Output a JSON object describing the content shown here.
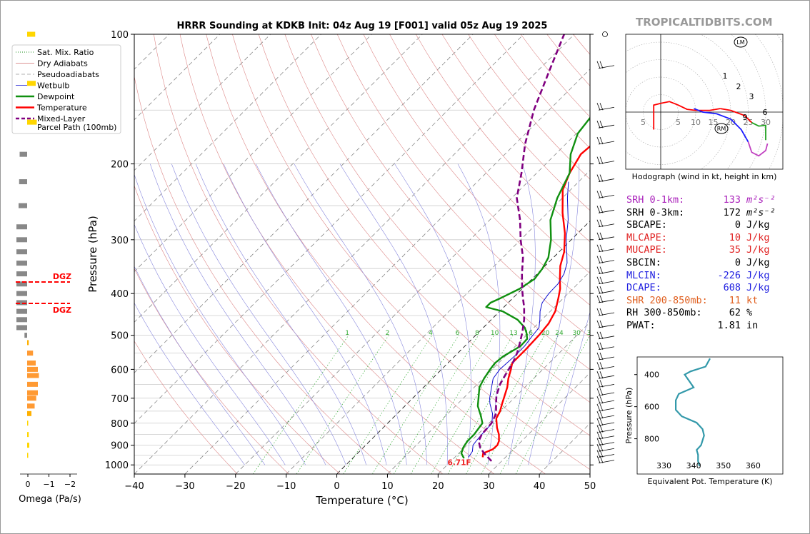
{
  "site": {
    "brand": "TROPICALTIDBITS.COM"
  },
  "chart_data": [
    {
      "type": "line",
      "chart_kind": "skew-T log-P sounding",
      "title": "HRRR Sounding at KDKB Init: 04z Aug 19 [F001] valid 05z Aug 19 2025",
      "xlabel": "Temperature (°C)",
      "ylabel": "Pressure (hPa)",
      "xlim": [
        -40,
        50
      ],
      "ylim": [
        1050,
        100
      ],
      "y_scale": "log",
      "x_ticks": [
        "−40",
        "−30",
        "−20",
        "−10",
        "0",
        "10",
        "20",
        "30",
        "40",
        "50"
      ],
      "y_ticks": [
        "100",
        "200",
        "300",
        "400",
        "500",
        "600",
        "700",
        "800",
        "900",
        "1000"
      ],
      "legend": {
        "position": "top-left",
        "entries": [
          {
            "label": "Sat. Mix. Ratio",
            "color": "#1a8f1a",
            "style": "dotted"
          },
          {
            "label": "Dry Adiabats",
            "color": "#d07070",
            "style": "solid"
          },
          {
            "label": "Pseudoadiabats",
            "color": "#999999",
            "style": "dashed"
          },
          {
            "label": "Wetbulb",
            "color": "#1010d0",
            "style": "solid"
          },
          {
            "label": "Dewpoint",
            "color": "#109010",
            "style": "solid"
          },
          {
            "label": "Temperature",
            "color": "#ff0000",
            "style": "solid"
          },
          {
            "label": "Mixed-Layer\nParcel Path (100mb)",
            "color": "#800080",
            "style": "dashed"
          }
        ]
      },
      "mixing_ratio_labels": [
        "1",
        "2",
        "4",
        "6",
        "8",
        "10",
        "13",
        "16",
        "20",
        "24",
        "30",
        "36"
      ],
      "surface_label": "6.71F",
      "series": [
        {
          "name": "Temperature",
          "color": "#ff0000",
          "points": [
            [
              25.5,
              960
            ],
            [
              24.8,
              940
            ],
            [
              25.9,
              920
            ],
            [
              26,
              900
            ],
            [
              25.5,
              880
            ],
            [
              24.2,
              850
            ],
            [
              22.5,
              820
            ],
            [
              20.5,
              780
            ],
            [
              19.8,
              750
            ],
            [
              18.7,
              720
            ],
            [
              18,
              700
            ],
            [
              16.5,
              660
            ],
            [
              15,
              630
            ],
            [
              13.7,
              600
            ],
            [
              12.7,
              580
            ],
            [
              12.7,
              560
            ],
            [
              12.7,
              540
            ],
            [
              12.5,
              500
            ],
            [
              12.1,
              470
            ],
            [
              11,
              440
            ],
            [
              9,
              410
            ],
            [
              7.5,
              390
            ],
            [
              5.5,
              370
            ],
            [
              3,
              345
            ],
            [
              1,
              320
            ],
            [
              -2.5,
              290
            ],
            [
              -7,
              260
            ],
            [
              -11.5,
              230
            ],
            [
              -13.5,
              210
            ],
            [
              -15,
              190
            ],
            [
              -14.3,
              170
            ],
            [
              -15,
              150
            ],
            [
              -13.2,
              130
            ],
            [
              -5,
              100
            ]
          ]
        },
        {
          "name": "Dewpoint",
          "color": "#109010",
          "points": [
            [
              22,
              965
            ],
            [
              20.5,
              940
            ],
            [
              19.7,
              910
            ],
            [
              19.3,
              880
            ],
            [
              19.3,
              850
            ],
            [
              18.7,
              800
            ],
            [
              17,
              770
            ],
            [
              14.4,
              730
            ],
            [
              13,
              700
            ],
            [
              11,
              660
            ],
            [
              10.2,
              630
            ],
            [
              9.6,
              600
            ],
            [
              9.3,
              580
            ],
            [
              9.6,
              560
            ],
            [
              11,
              530
            ],
            [
              10.9,
              510
            ],
            [
              9.7,
              495
            ],
            [
              8.2,
              480
            ],
            [
              5.2,
              460
            ],
            [
              0.6,
              440
            ],
            [
              -3.5,
              430
            ],
            [
              -3.5,
              420
            ],
            [
              -2.4,
              410
            ],
            [
              -0.5,
              390
            ],
            [
              0.5,
              370
            ],
            [
              0,
              350
            ],
            [
              -1,
              330
            ],
            [
              -4,
              300
            ],
            [
              -8,
              270
            ],
            [
              -11,
              240
            ],
            [
              -13.5,
              210
            ],
            [
              -17,
              190
            ],
            [
              -19.7,
              170
            ],
            [
              -20.7,
              150
            ],
            [
              -21,
              130
            ],
            [
              -16,
              100
            ]
          ]
        },
        {
          "name": "Wetbulb",
          "color": "#1010d0",
          "points": [
            [
              22.7,
              960
            ],
            [
              22.3,
              930
            ],
            [
              21.2,
              900
            ],
            [
              21,
              880
            ],
            [
              20.8,
              850
            ],
            [
              20.6,
              800
            ],
            [
              18.8,
              760
            ],
            [
              16.3,
              720
            ],
            [
              15.2,
              700
            ],
            [
              13.4,
              660
            ],
            [
              12,
              630
            ],
            [
              11.5,
              600
            ],
            [
              11.8,
              560
            ],
            [
              11.8,
              530
            ],
            [
              11.3,
              500
            ],
            [
              11,
              480
            ],
            [
              9.6,
              460
            ],
            [
              8,
              440
            ],
            [
              6.7,
              420
            ],
            [
              6.2,
              400
            ],
            [
              6.1,
              380
            ],
            [
              5.3,
              360
            ],
            [
              3.8,
              340
            ],
            [
              1.5,
              320
            ],
            [
              -1,
              300
            ],
            [
              -4.5,
              270
            ],
            [
              -9,
              240
            ],
            [
              -12,
              220
            ]
          ]
        },
        {
          "name": "Mixed-Layer Parcel Path (100mb)",
          "color": "#800080",
          "style": "dashed",
          "points": [
            [
              28,
              980
            ],
            [
              25,
              940
            ],
            [
              23,
              910
            ],
            [
              21.5,
              880
            ],
            [
              20.8,
              850
            ],
            [
              20.5,
              800
            ],
            [
              19.5,
              760
            ],
            [
              17.5,
              720
            ],
            [
              16,
              690
            ],
            [
              14.5,
              650
            ],
            [
              13.5,
              610
            ],
            [
              12.8,
              580
            ],
            [
              11.7,
              550
            ],
            [
              10.2,
              520
            ],
            [
              8.5,
              490
            ],
            [
              6.5,
              460
            ],
            [
              4,
              430
            ],
            [
              2,
              410
            ],
            [
              0,
              390
            ],
            [
              -3,
              360
            ],
            [
              -6,
              330
            ],
            [
              -10,
              300
            ],
            [
              -14,
              270
            ],
            [
              -19,
              240
            ],
            [
              -23,
              210
            ],
            [
              -28,
              180
            ],
            [
              -33,
              150
            ],
            [
              -38,
              120
            ],
            [
              -42,
              100
            ]
          ]
        }
      ],
      "wind_barbs_pressure": [
        990,
        960,
        930,
        900,
        870,
        840,
        810,
        780,
        750,
        720,
        690,
        660,
        630,
        600,
        570,
        540,
        510,
        480,
        450,
        420,
        400,
        380,
        360,
        340,
        320,
        300,
        280,
        260,
        240,
        220,
        200,
        180,
        165,
        150,
        120,
        100
      ]
    },
    {
      "type": "line",
      "chart_kind": "hodograph",
      "xlabel": "Hodograph (wind in kt, height in km)",
      "ring_labels": [
        "5",
        "5",
        "10",
        "15",
        "20",
        "25",
        "30"
      ],
      "markers": [
        "LM",
        "RM"
      ],
      "height_labels": [
        "1",
        "2",
        "3",
        "6",
        "9"
      ],
      "segments": [
        {
          "range_km": "0-1",
          "color": "#ff0000",
          "points": [
            [
              -2,
              -5
            ],
            [
              -2,
              2
            ],
            [
              0,
              2.5
            ],
            [
              2.5,
              3
            ],
            [
              5,
              2
            ],
            [
              7.5,
              0.8
            ],
            [
              10,
              0.5
            ],
            [
              14,
              0.5
            ],
            [
              17,
              1
            ]
          ]
        },
        {
          "range_km": "1-3",
          "color": "#ff0000",
          "points": [
            [
              17,
              1
            ],
            [
              20,
              0.5
            ],
            [
              24,
              -1
            ],
            [
              26,
              -3
            ]
          ]
        },
        {
          "range_km": "3-6",
          "color": "#20a020",
          "points": [
            [
              26,
              -3
            ],
            [
              28,
              -4
            ],
            [
              30,
              -3.8
            ],
            [
              30,
              -8
            ]
          ]
        },
        {
          "range_km": "6-9 (blue)",
          "color": "#1a1aff",
          "points": [
            [
              9.5,
              1
            ],
            [
              12,
              0
            ],
            [
              16,
              -0.5
            ],
            [
              20,
              -2
            ],
            [
              23,
              -5
            ],
            [
              25,
              -8.5
            ]
          ]
        },
        {
          "range_km": "9+",
          "color": "#c040c0",
          "points": [
            [
              25,
              -8.5
            ],
            [
              26,
              -11.5
            ],
            [
              28,
              -12.5
            ],
            [
              30,
              -11
            ],
            [
              30.5,
              -9
            ]
          ]
        }
      ]
    },
    {
      "type": "line",
      "chart_kind": "equivalent potential temperature profile",
      "xlabel": "Equivalent Pot. Temperature (K)",
      "ylabel": "Pressure (hPa)",
      "x_ticks": [
        "330",
        "340",
        "350",
        "360"
      ],
      "y_ticks": [
        "400",
        "600",
        "800"
      ],
      "series": [
        {
          "name": "theta-e",
          "color": "#3399aa",
          "points": [
            [
              345.5,
              300
            ],
            [
              344,
              350
            ],
            [
              339,
              380
            ],
            [
              337,
              400
            ],
            [
              338.5,
              440
            ],
            [
              340,
              480
            ],
            [
              335,
              520
            ],
            [
              334,
              560
            ],
            [
              334,
              620
            ],
            [
              336,
              660
            ],
            [
              341,
              700
            ],
            [
              343,
              740
            ],
            [
              343.5,
              780
            ],
            [
              342.5,
              840
            ],
            [
              341,
              870
            ],
            [
              341.5,
              900
            ],
            [
              341.5,
              940
            ],
            [
              342,
              970
            ]
          ]
        }
      ]
    },
    {
      "type": "bar",
      "chart_kind": "omega profile",
      "xlabel": "Omega (Pa/s)",
      "x_ticks": [
        "0",
        "−1",
        "−2"
      ],
      "dgz_label": "DGZ",
      "bars_note": "omega vs pressure"
    }
  ],
  "indices": [
    {
      "label": "SRH 0-1km:",
      "value": "133",
      "unit": "m²s⁻²",
      "color": "#aa22bb"
    },
    {
      "label": "SRH 0-3km:",
      "value": "172",
      "unit": "m²s⁻²",
      "color": "#000000"
    },
    {
      "label": "SBCAPE:",
      "value": "0",
      "unit": "J/kg",
      "color": "#000000"
    },
    {
      "label": "MLCAPE:",
      "value": "10",
      "unit": "J/kg",
      "color": "#e02020"
    },
    {
      "label": "MUCAPE:",
      "value": "35",
      "unit": "J/kg",
      "color": "#e02020"
    },
    {
      "label": "SBCIN:",
      "value": "0",
      "unit": "J/kg",
      "color": "#000000"
    },
    {
      "label": "MLCIN:",
      "value": "-226",
      "unit": "J/kg",
      "color": "#2020e0"
    },
    {
      "label": "DCAPE:",
      "value": "608",
      "unit": "J/kg",
      "color": "#2020e0"
    },
    {
      "label": "SHR 200-850mb:",
      "value": "11",
      "unit": "kt",
      "color": "#e06020"
    },
    {
      "label": "RH 300-850mb:",
      "value": "62",
      "unit": "%",
      "color": "#000000"
    },
    {
      "label": "PWAT:",
      "value": "1.81",
      "unit": "in",
      "color": "#000000"
    }
  ]
}
